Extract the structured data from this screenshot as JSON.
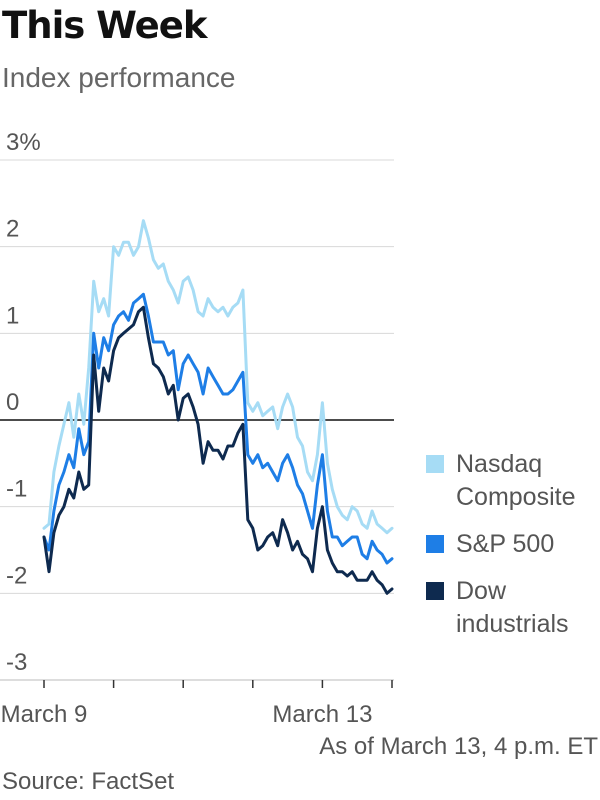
{
  "title": "This Week",
  "subtitle": "Index performance",
  "note": "As of March 13, 4 p.m. ET",
  "source": "Source: FactSet",
  "chart_data": {
    "type": "line",
    "ylim": [
      -3,
      3
    ],
    "yticks": [
      {
        "value": 3,
        "label": "3%"
      },
      {
        "value": 2,
        "label": "2"
      },
      {
        "value": 1,
        "label": "1"
      },
      {
        "value": 0,
        "label": "0"
      },
      {
        "value": -1,
        "label": "-1"
      },
      {
        "value": -2,
        "label": "-2"
      },
      {
        "value": -3,
        "label": "-3"
      }
    ],
    "xlabels": [
      {
        "session": 0,
        "label": "March 9"
      },
      {
        "session": 4,
        "label": "March 13"
      }
    ],
    "sessions": 5,
    "grid": true,
    "legend_position": "right",
    "series": [
      {
        "name": "Nasdaq Composite",
        "color": "#a6dcf5",
        "values": [
          -1.25,
          -1.2,
          -0.6,
          -0.3,
          -0.05,
          0.2,
          -0.2,
          0.3,
          -0.05,
          0.6,
          1.6,
          1.25,
          1.4,
          1.2,
          2.0,
          1.9,
          2.05,
          2.05,
          1.9,
          2.0,
          2.3,
          2.1,
          1.85,
          1.75,
          1.8,
          1.6,
          1.5,
          1.35,
          1.6,
          1.65,
          1.5,
          1.25,
          1.2,
          1.4,
          1.3,
          1.25,
          1.3,
          1.2,
          1.3,
          1.35,
          1.5,
          0.2,
          0.1,
          0.2,
          0.05,
          0.1,
          0.15,
          -0.1,
          0.15,
          0.3,
          0.15,
          -0.2,
          -0.3,
          -0.6,
          -0.7,
          -0.4,
          0.2,
          -0.5,
          -0.8,
          -1.0,
          -1.1,
          -1.15,
          -1.0,
          -1.05,
          -1.2,
          -1.25,
          -1.05,
          -1.2,
          -1.25,
          -1.3,
          -1.25
        ]
      },
      {
        "name": "S&P 500",
        "color": "#1e7ee6",
        "values": [
          -1.35,
          -1.5,
          -1.05,
          -0.75,
          -0.6,
          -0.4,
          -0.55,
          -0.1,
          -0.4,
          -0.25,
          1.0,
          0.6,
          0.95,
          0.8,
          1.1,
          1.2,
          1.25,
          1.15,
          1.35,
          1.4,
          1.45,
          1.2,
          0.9,
          0.9,
          0.9,
          0.75,
          0.8,
          0.35,
          0.65,
          0.75,
          0.65,
          0.55,
          0.3,
          0.6,
          0.5,
          0.4,
          0.3,
          0.3,
          0.35,
          0.45,
          0.55,
          -0.4,
          -0.5,
          -0.4,
          -0.55,
          -0.5,
          -0.6,
          -0.7,
          -0.5,
          -0.4,
          -0.55,
          -0.75,
          -0.85,
          -1.05,
          -1.25,
          -0.75,
          -0.4,
          -1.05,
          -1.35,
          -1.35,
          -1.45,
          -1.4,
          -1.35,
          -1.35,
          -1.55,
          -1.6,
          -1.4,
          -1.5,
          -1.55,
          -1.65,
          -1.6
        ]
      },
      {
        "name": "Dow industrials",
        "color": "#0e2a4f",
        "values": [
          -1.35,
          -1.75,
          -1.3,
          -1.1,
          -1.0,
          -0.8,
          -0.9,
          -0.6,
          -0.8,
          -0.75,
          0.75,
          0.1,
          0.6,
          0.45,
          0.8,
          0.95,
          1.0,
          1.05,
          1.1,
          1.25,
          1.3,
          0.95,
          0.65,
          0.6,
          0.5,
          0.3,
          0.4,
          0.0,
          0.25,
          0.3,
          0.15,
          -0.05,
          -0.5,
          -0.25,
          -0.35,
          -0.35,
          -0.45,
          -0.3,
          -0.3,
          -0.15,
          -0.05,
          -1.15,
          -1.25,
          -1.5,
          -1.45,
          -1.35,
          -1.3,
          -1.45,
          -1.15,
          -1.3,
          -1.5,
          -1.4,
          -1.55,
          -1.6,
          -1.75,
          -1.25,
          -1.0,
          -1.5,
          -1.65,
          -1.75,
          -1.75,
          -1.8,
          -1.75,
          -1.85,
          -1.85,
          -1.85,
          -1.75,
          -1.85,
          -1.9,
          -2.0,
          -1.95
        ]
      }
    ]
  }
}
